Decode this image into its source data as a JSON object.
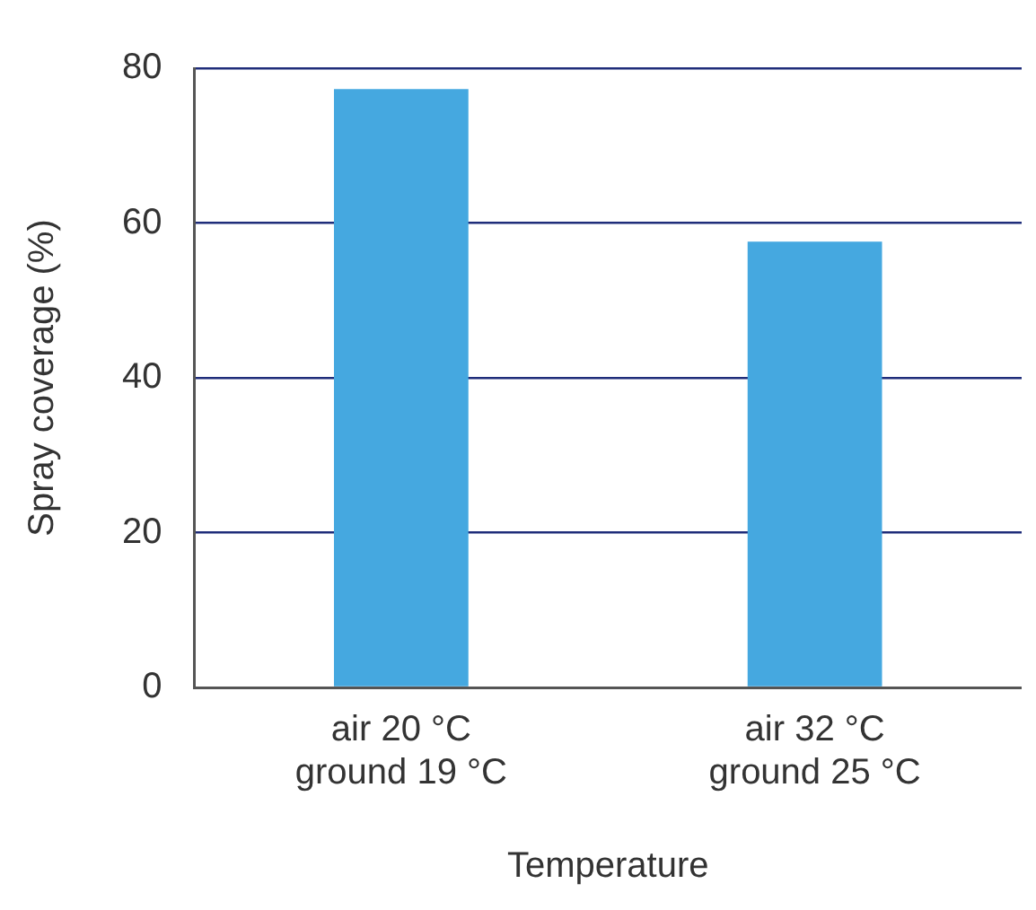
{
  "chart_data": {
    "type": "bar",
    "categories": [
      "air 20 °C\nground 19 °C",
      "air 32 °C\nground 25 °C"
    ],
    "values": [
      77.3,
      57.6
    ],
    "color": "#45a8e0",
    "xlabel": "Temperature",
    "ylabel": "Spray coverage (%)",
    "ylim": [
      0,
      80
    ],
    "yticks": [
      0,
      20,
      40,
      60,
      80
    ],
    "grid": "y",
    "legend": false
  }
}
